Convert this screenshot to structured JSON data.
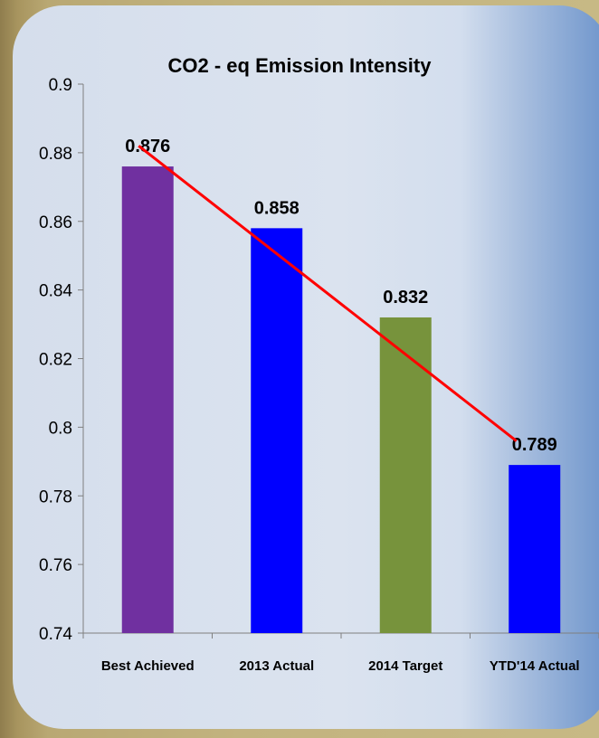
{
  "chart_data": {
    "type": "bar",
    "title": "CO2 - eq Emission Intensity",
    "categories": [
      "Best Achieved",
      "2013 Actual",
      "2014 Target",
      "YTD'14 Actual"
    ],
    "values": [
      0.876,
      0.858,
      0.832,
      0.789
    ],
    "data_labels": [
      "0.876",
      "0.858",
      "0.832",
      "0.789"
    ],
    "bar_colors": [
      "#7030a0",
      "#0000ff",
      "#77933c",
      "#0000ff"
    ],
    "ylim": [
      0.74,
      0.9
    ],
    "yticks": [
      0.74,
      0.76,
      0.78,
      0.8,
      0.82,
      0.84,
      0.86,
      0.88,
      0.9
    ],
    "ytick_labels": [
      "0.74",
      "0.76",
      "0.78",
      "0.8",
      "0.82",
      "0.84",
      "0.86",
      "0.88",
      "0.9"
    ],
    "trend_line": {
      "color": "#ff0000",
      "start_value": 0.882,
      "end_value": 0.796
    },
    "grid": false,
    "legend": "none"
  }
}
